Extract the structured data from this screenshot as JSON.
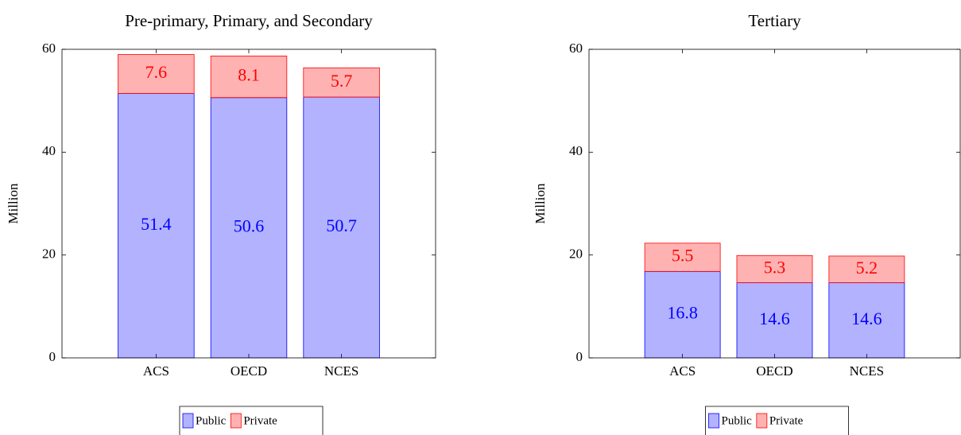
{
  "chart_data": [
    {
      "type": "bar",
      "stacked": true,
      "title": "Pre-primary, Primary, and Secondary",
      "ylabel": "Million",
      "categories": [
        "ACS",
        "OECD",
        "NCES"
      ],
      "series": [
        {
          "name": "Public",
          "color": "#0000ff",
          "values": [
            51.4,
            50.6,
            50.7
          ]
        },
        {
          "name": "Private",
          "color": "#ff0000",
          "values": [
            7.6,
            8.1,
            5.7
          ]
        }
      ],
      "ylim": [
        0,
        60
      ],
      "yticks": [
        0,
        20,
        40,
        60
      ],
      "legend": "bottom"
    },
    {
      "type": "bar",
      "stacked": true,
      "title": "Tertiary",
      "ylabel": "Million",
      "categories": [
        "ACS",
        "OECD",
        "NCES"
      ],
      "series": [
        {
          "name": "Public",
          "color": "#0000ff",
          "values": [
            16.8,
            14.6,
            14.6
          ]
        },
        {
          "name": "Private",
          "color": "#ff0000",
          "values": [
            5.5,
            5.3,
            5.2
          ]
        }
      ],
      "ylim": [
        0,
        60
      ],
      "yticks": [
        0,
        20,
        40,
        60
      ],
      "legend": "bottom"
    }
  ]
}
